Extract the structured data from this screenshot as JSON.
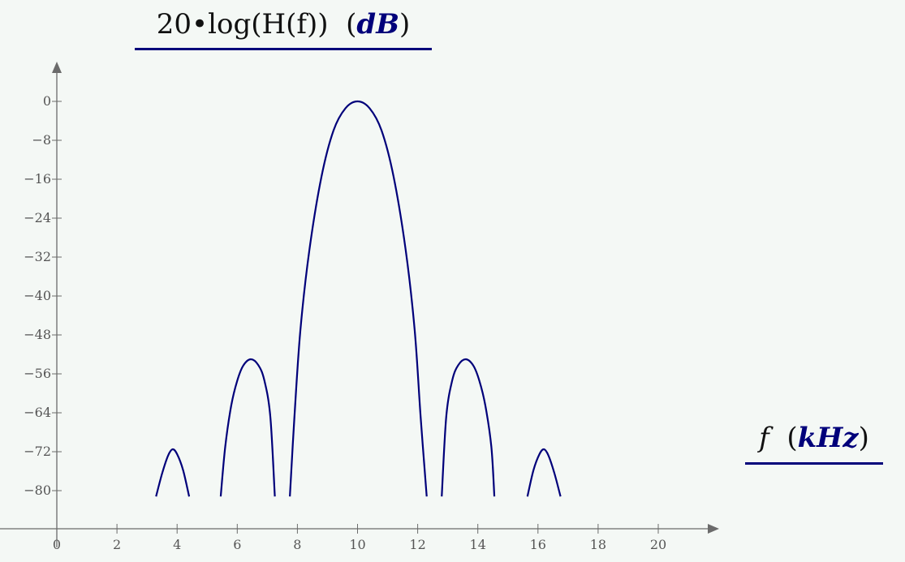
{
  "chart_data": {
    "type": "line",
    "title": "",
    "ylabel": {
      "expression": "20•log(H(f))",
      "unit": "dB"
    },
    "xlabel": {
      "variable": "f",
      "unit": "kHz"
    },
    "xlim": [
      0,
      21.6
    ],
    "ylim": [
      -86,
      9
    ],
    "xticks": [
      0,
      2,
      4,
      6,
      8,
      10,
      12,
      14,
      16,
      18,
      20
    ],
    "yticks": [
      0,
      -8,
      -16,
      -24,
      -32,
      -40,
      -48,
      -56,
      -64,
      -72,
      -80
    ],
    "grid": false,
    "line_color": "#00007a",
    "series": [
      {
        "values_note_segments": [
          [
            [
              3.3,
              -81.2
            ],
            [
              3.5,
              -76.5
            ],
            [
              3.7,
              -72.8
            ],
            [
              3.85,
              -71.5
            ],
            [
              4.0,
              -72.5
            ],
            [
              4.2,
              -75.8
            ],
            [
              4.4,
              -81.2
            ]
          ],
          [
            [
              5.45,
              -81.2
            ],
            [
              5.6,
              -71.0
            ],
            [
              5.8,
              -62.5
            ],
            [
              6.0,
              -57.4
            ],
            [
              6.2,
              -54.3
            ],
            [
              6.45,
              -53.0
            ],
            [
              6.7,
              -54.2
            ],
            [
              6.9,
              -57.3
            ],
            [
              7.1,
              -64.8
            ],
            [
              7.25,
              -81.2
            ]
          ],
          [
            [
              7.75,
              -81.2
            ],
            [
              7.9,
              -65.0
            ],
            [
              8.1,
              -47.0
            ],
            [
              8.4,
              -30.5
            ],
            [
              8.8,
              -15.5
            ],
            [
              9.2,
              -6.0
            ],
            [
              9.6,
              -1.4
            ],
            [
              10.0,
              0.0
            ],
            [
              10.4,
              -1.4
            ],
            [
              10.8,
              -6.0
            ],
            [
              11.2,
              -15.5
            ],
            [
              11.6,
              -30.5
            ],
            [
              11.9,
              -47.0
            ],
            [
              12.1,
              -65.0
            ],
            [
              12.3,
              -81.2
            ]
          ],
          [
            [
              12.8,
              -81.2
            ],
            [
              12.95,
              -64.8
            ],
            [
              13.15,
              -57.3
            ],
            [
              13.35,
              -54.2
            ],
            [
              13.6,
              -53.0
            ],
            [
              13.85,
              -54.3
            ],
            [
              14.05,
              -57.4
            ],
            [
              14.25,
              -62.5
            ],
            [
              14.45,
              -71.0
            ],
            [
              14.55,
              -81.2
            ]
          ],
          [
            [
              15.65,
              -81.2
            ],
            [
              15.85,
              -75.8
            ],
            [
              16.05,
              -72.5
            ],
            [
              16.2,
              -71.5
            ],
            [
              16.35,
              -72.8
            ],
            [
              16.55,
              -76.5
            ],
            [
              16.75,
              -81.2
            ]
          ]
        ]
      }
    ]
  }
}
